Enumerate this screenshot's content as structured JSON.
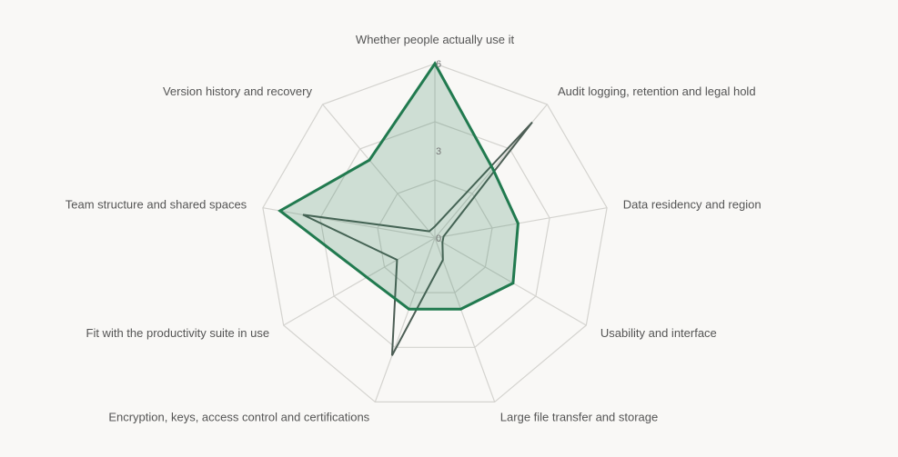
{
  "chart_data": {
    "type": "radar",
    "axes": [
      "Whether people actually use it",
      "Audit logging, retention and legal hold",
      "Data residency and region",
      "Usability and interface",
      "Large file transfer and storage",
      "Encryption, keys, access control and certifications",
      "Fit with the productivity suite in use",
      "Team structure and shared spaces",
      "Version history and recovery"
    ],
    "ticks": [
      0,
      3,
      6
    ],
    "range": [
      0,
      6
    ],
    "series": [
      {
        "values": [
          6.0,
          3.1,
          2.9,
          3.1,
          2.6,
          2.6,
          2.7,
          5.4,
          3.5
        ],
        "color": "#217a4f",
        "fill": "rgba(33,122,79,0.20)"
      },
      {
        "values": [
          0.4,
          5.2,
          0.3,
          0.3,
          0.8,
          4.3,
          1.5,
          4.6,
          0.3
        ],
        "color": "#4d5e55",
        "fill": "none"
      }
    ],
    "grid_color": "#d4d3cf"
  }
}
